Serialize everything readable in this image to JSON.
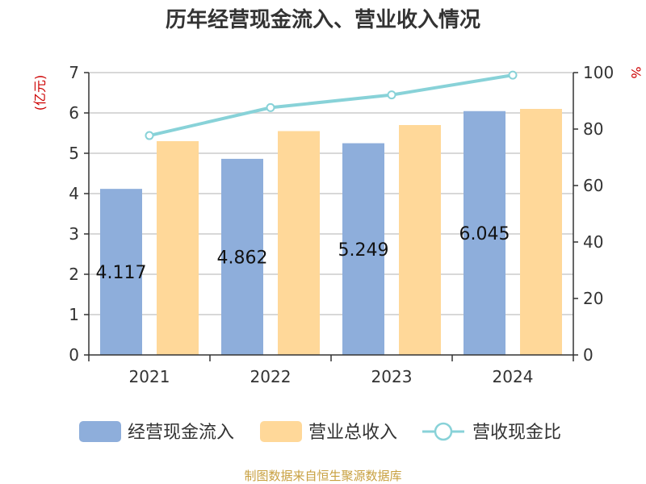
{
  "chart_data": {
    "type": "bar",
    "title": "历年经营现金流入、营业收入情况",
    "left_unit": "(亿元)",
    "right_unit": "%",
    "categories": [
      "2021",
      "2022",
      "2023",
      "2024"
    ],
    "series": [
      {
        "name": "经营现金流入",
        "axis": "left",
        "type": "bar",
        "color": "#8eaedb",
        "values": [
          4.117,
          4.862,
          5.249,
          6.045
        ],
        "labels": [
          "4.117",
          "4.862",
          "5.249",
          "6.045"
        ]
      },
      {
        "name": "营业总收入",
        "axis": "left",
        "type": "bar",
        "color": "#ffd899",
        "values": [
          5.3,
          5.55,
          5.7,
          6.1
        ]
      },
      {
        "name": "营收现金比",
        "axis": "right",
        "type": "line",
        "color": "#88d2d8",
        "values": [
          77.7,
          87.6,
          92.1,
          99.1
        ]
      }
    ],
    "left_axis": {
      "min": 0,
      "max": 7,
      "ticks": [
        "0",
        "1",
        "2",
        "3",
        "4",
        "5",
        "6",
        "7"
      ]
    },
    "right_axis": {
      "min": 0,
      "max": 100,
      "ticks": [
        "0",
        "20",
        "40",
        "60",
        "80",
        "100"
      ]
    },
    "grid": true,
    "legend": "bottom"
  },
  "source": "制图数据来自恒生聚源数据库"
}
